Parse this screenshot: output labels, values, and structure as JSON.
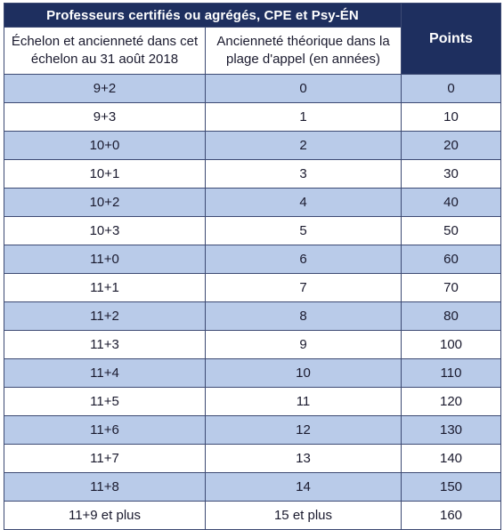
{
  "table": {
    "group_title": "Professeurs certifiés ou agrégés, CPE et Psy-ÉN",
    "col1_header": "Échelon et ancienneté dans cet échelon au 31 août 2018",
    "col2_header": "Ancienneté théorique dans la plage d'appel (en années)",
    "col3_header": "Points",
    "rows": [
      {
        "echelon": "9+2",
        "anciennete": "0",
        "points": "0"
      },
      {
        "echelon": "9+3",
        "anciennete": "1",
        "points": "10"
      },
      {
        "echelon": "10+0",
        "anciennete": "2",
        "points": "20"
      },
      {
        "echelon": "10+1",
        "anciennete": "3",
        "points": "30"
      },
      {
        "echelon": "10+2",
        "anciennete": "4",
        "points": "40"
      },
      {
        "echelon": "10+3",
        "anciennete": "5",
        "points": "50"
      },
      {
        "echelon": "11+0",
        "anciennete": "6",
        "points": "60"
      },
      {
        "echelon": "11+1",
        "anciennete": "7",
        "points": "70"
      },
      {
        "echelon": "11+2",
        "anciennete": "8",
        "points": "80"
      },
      {
        "echelon": "11+3",
        "anciennete": "9",
        "points": "100"
      },
      {
        "echelon": "11+4",
        "anciennete": "10",
        "points": "110"
      },
      {
        "echelon": "11+5",
        "anciennete": "11",
        "points": "120"
      },
      {
        "echelon": "11+6",
        "anciennete": "12",
        "points": "130"
      },
      {
        "echelon": "11+7",
        "anciennete": "13",
        "points": "140"
      },
      {
        "echelon": "11+8",
        "anciennete": "14",
        "points": "150"
      },
      {
        "echelon": "11+9 et plus",
        "anciennete": "15 et plus",
        "points": "160"
      }
    ],
    "colors": {
      "header_bg": "#1e2f5f",
      "stripe_bg": "#b9cbe9",
      "plain_bg": "#ffffff",
      "border": "#3d4a73"
    }
  }
}
